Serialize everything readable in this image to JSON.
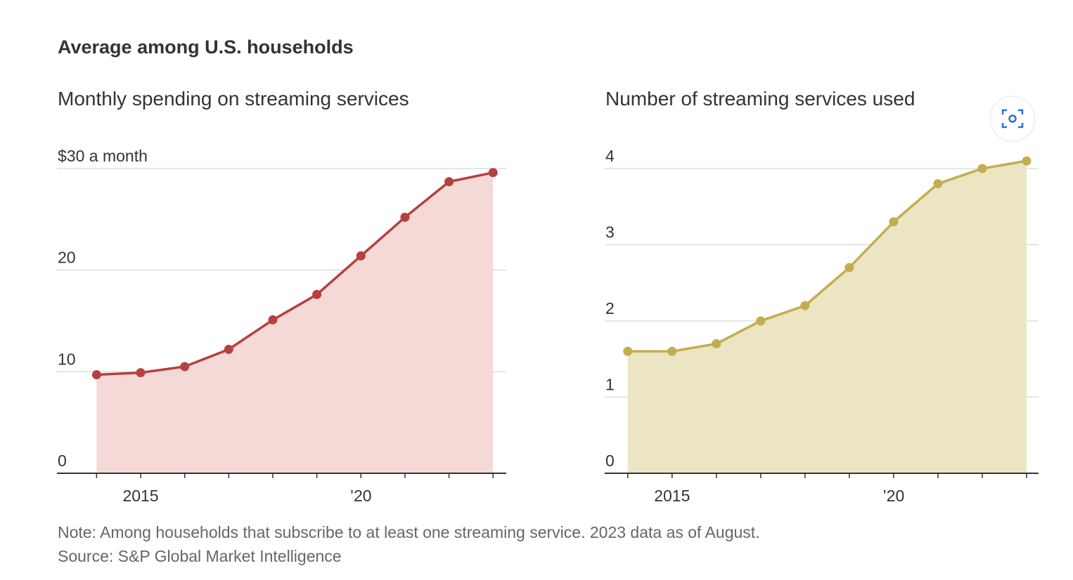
{
  "title": "Average among U.S. households",
  "chart_data": [
    {
      "type": "area",
      "title": "Monthly spending on streaming services",
      "x": [
        2014,
        2015,
        2016,
        2017,
        2018,
        2019,
        2020,
        2021,
        2022,
        2023
      ],
      "values": [
        9.7,
        9.9,
        10.5,
        12.2,
        15.1,
        17.6,
        21.4,
        25.2,
        28.7,
        29.6
      ],
      "color": "#b5403f",
      "fill_color": "#f4d9d6",
      "xlim": [
        2013.1,
        2023.3
      ],
      "xticks": [
        2015,
        {
          "value": 2020,
          "label": "’20"
        }
      ],
      "ylim": [
        0,
        30
      ],
      "yticks": [
        0,
        10,
        20,
        {
          "value": 30,
          "label": "$30 a month"
        }
      ],
      "grid": true
    },
    {
      "type": "area",
      "title": "Number of streaming services used",
      "x": [
        2014,
        2015,
        2016,
        2017,
        2018,
        2019,
        2020,
        2021,
        2022,
        2023
      ],
      "values": [
        1.6,
        1.6,
        1.7,
        2.0,
        2.2,
        2.7,
        3.3,
        3.8,
        4.0,
        4.1
      ],
      "color": "#c4ad4f",
      "fill_color": "#ebe5c4",
      "xlim": [
        2013.48,
        2023.27
      ],
      "xticks": [
        2015,
        {
          "value": 2020,
          "label": "’20"
        }
      ],
      "ylim": [
        0,
        4
      ],
      "yticks": [
        0,
        1,
        2,
        3,
        4
      ],
      "grid": true
    }
  ],
  "note": "Note: Among households that subscribe to at least one streaming service. 2023 data as of August.",
  "source": "Source: S&P Global Market Intelligence"
}
